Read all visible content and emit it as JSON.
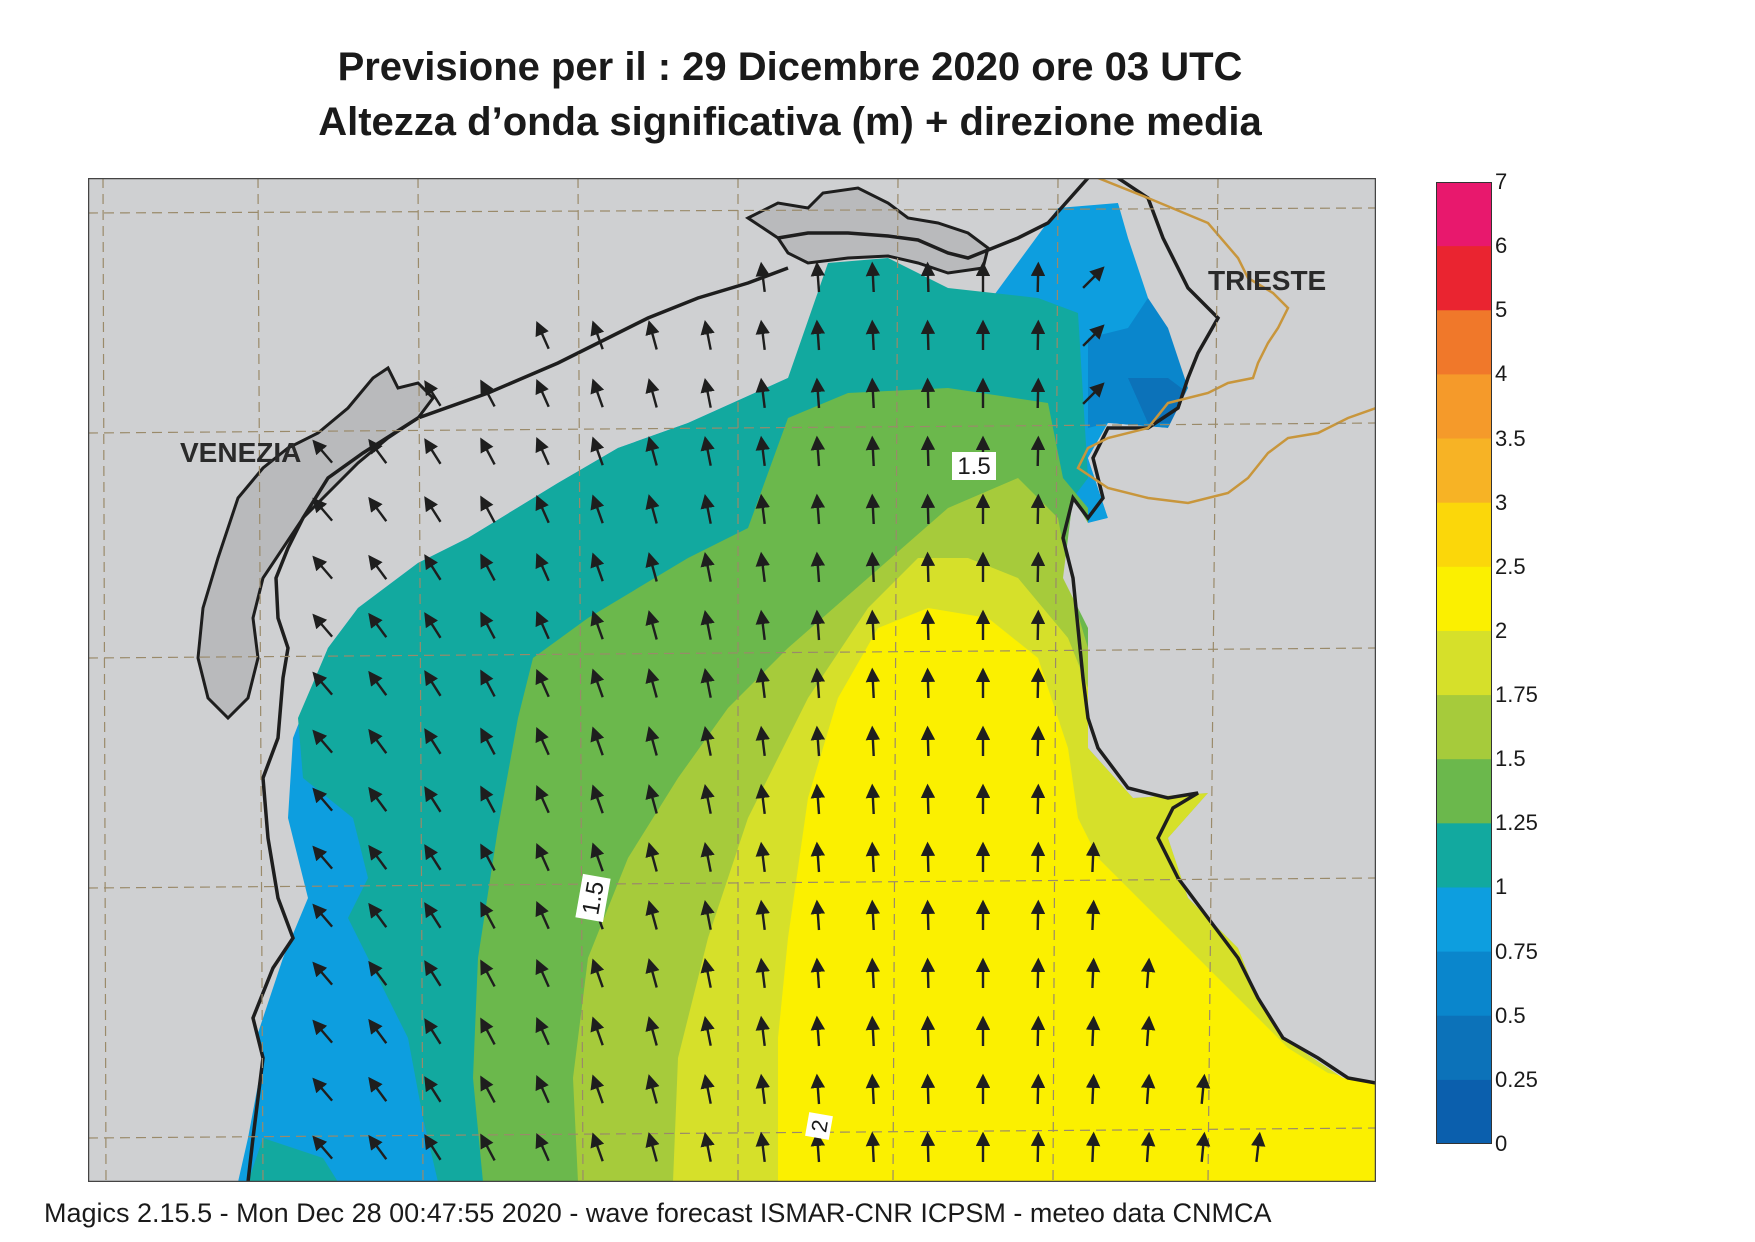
{
  "header": {
    "title_line1": "Previsione per il  :  29 Dicembre  2020   ore 03 UTC",
    "title_line2": "Altezza d’onda significativa (m) + direzione media"
  },
  "map": {
    "city_labels": [
      "VENEZIA",
      "TRIESTE"
    ],
    "contour_labels": [
      "1.5",
      "1.5",
      "2"
    ],
    "colors": {
      "land": "#cfd0d2",
      "land_lagoon": "#b9babc",
      "coast": "#1e1e1e",
      "border": "#c8963c",
      "grid": "#9a8a6a",
      "arrow": "#1e1e1e"
    },
    "arrow_field": "mean wave direction vectors"
  },
  "legend": {
    "ticks": [
      "7",
      "6",
      "5",
      "4",
      "3.5",
      "3",
      "2.5",
      "2",
      "1.75",
      "1.5",
      "1.25",
      "1",
      "0.75",
      "0.5",
      "0.25",
      "0"
    ],
    "colors": [
      "#e8186d",
      "#ea2430",
      "#f0782a",
      "#f59a2a",
      "#f7b325",
      "#fbd70a",
      "#fbf000",
      "#d6e02a",
      "#a6cb3b",
      "#6bb84c",
      "#12a99f",
      "#0d9edf",
      "#0a86cc",
      "#0c72b9",
      "#0b5fad"
    ]
  },
  "footer": {
    "text": "Magics 2.15.5 - Mon Dec 28 00:47:55 2020 - wave forecast  ISMAR-CNR  ICPSM - meteo data   CNMCA"
  }
}
